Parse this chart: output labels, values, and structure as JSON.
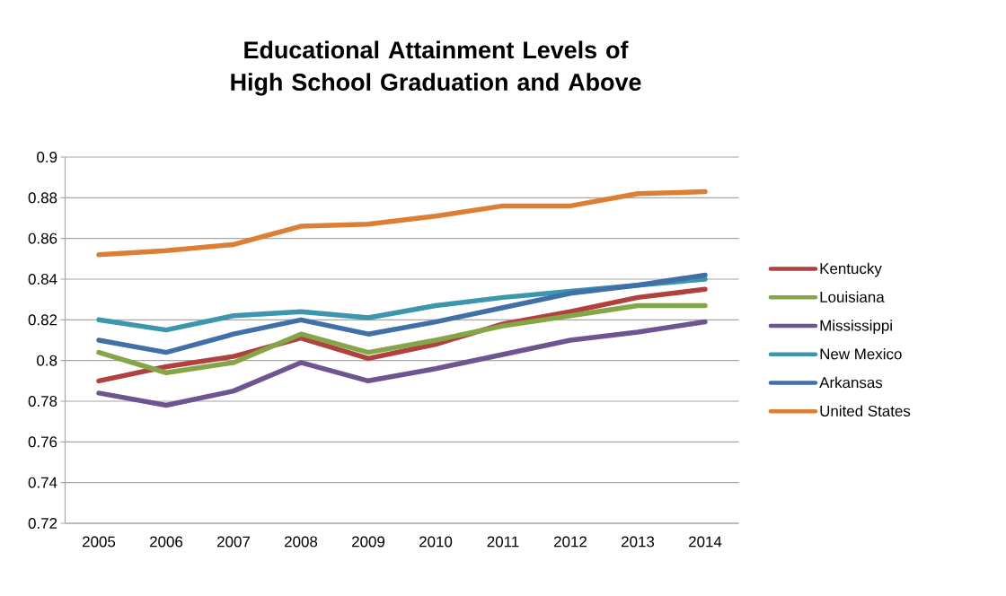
{
  "chart_data": {
    "type": "line",
    "title": "Educational Attainment Levels of High School Graduation and Above",
    "categories": [
      "2005",
      "2006",
      "2007",
      "2008",
      "2009",
      "2010",
      "2011",
      "2012",
      "2013",
      "2014"
    ],
    "series": [
      {
        "name": "Kentucky",
        "color": "#b0413e",
        "values": [
          0.79,
          0.797,
          0.802,
          0.811,
          0.801,
          0.808,
          0.818,
          0.824,
          0.831,
          0.835
        ]
      },
      {
        "name": "Louisiana",
        "color": "#84a648",
        "values": [
          0.804,
          0.794,
          0.799,
          0.813,
          0.804,
          0.81,
          0.817,
          0.822,
          0.827,
          0.827
        ]
      },
      {
        "name": "Mississippi",
        "color": "#6f558f",
        "values": [
          0.784,
          0.778,
          0.785,
          0.799,
          0.79,
          0.796,
          0.803,
          0.81,
          0.814,
          0.819
        ]
      },
      {
        "name": "New Mexico",
        "color": "#3c96ad",
        "values": [
          0.82,
          0.815,
          0.822,
          0.824,
          0.821,
          0.827,
          0.831,
          0.834,
          0.837,
          0.84
        ]
      },
      {
        "name": "Arkansas",
        "color": "#4170a8",
        "values": [
          0.81,
          0.804,
          0.813,
          0.82,
          0.813,
          0.819,
          0.826,
          0.833,
          0.837,
          0.842
        ]
      },
      {
        "name": "United States",
        "color": "#dc7f35",
        "values": [
          0.852,
          0.854,
          0.857,
          0.866,
          0.867,
          0.871,
          0.876,
          0.876,
          0.882,
          0.883
        ]
      }
    ],
    "ylim": [
      0.72,
      0.9
    ],
    "yticks": [
      0.72,
      0.74,
      0.76,
      0.78,
      0.8,
      0.82,
      0.84,
      0.86,
      0.88,
      0.9
    ],
    "grid": "y",
    "legend": "right",
    "marker": "none",
    "line_style": "solid"
  }
}
